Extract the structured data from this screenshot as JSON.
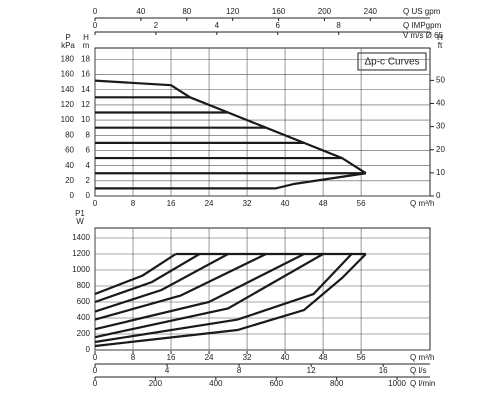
{
  "chart_data": [
    {
      "type": "line",
      "title": "Δp-c Curves",
      "grid": true,
      "color": "#1a1a1a",
      "x_label": "Q m³/h",
      "xlim": [
        0,
        70.5
      ],
      "xticks": [
        0,
        8,
        16,
        24,
        32,
        40,
        48,
        56
      ],
      "y_label": {
        "name": "H",
        "unit": "m"
      },
      "ylim": [
        0,
        19.5
      ],
      "yticks": [
        0,
        2,
        4,
        6,
        8,
        10,
        12,
        14,
        16,
        18
      ],
      "p_axis": {
        "name": "P",
        "unit": "kPa",
        "lim": [
          0,
          195
        ],
        "ticks": [
          0,
          20,
          40,
          60,
          80,
          100,
          120,
          140,
          160,
          180
        ]
      },
      "y2_label": {
        "name": "H",
        "unit": "ft"
      },
      "y2lim": [
        0,
        64
      ],
      "y2ticks": [
        0,
        10,
        20,
        30,
        40,
        50
      ],
      "top_axes": [
        {
          "label": "Q US gpm",
          "lim": [
            0,
            292
          ],
          "ticks": [
            0,
            40,
            80,
            120,
            160,
            200,
            240
          ]
        },
        {
          "label": "Q IMPgpm",
          "lim": [
            0,
            11
          ],
          "ticks": [
            0,
            2,
            4,
            6,
            8
          ]
        }
      ],
      "v_label": "V m/s Ø 65",
      "series": [
        {
          "x": [
            0,
            16,
            20,
            28,
            36,
            44,
            52,
            57
          ],
          "values": [
            15.2,
            14.6,
            13,
            11,
            9,
            7,
            5,
            3
          ]
        },
        {
          "x": [
            0,
            20
          ],
          "values": [
            13,
            13
          ]
        },
        {
          "x": [
            0,
            28
          ],
          "values": [
            11,
            11
          ]
        },
        {
          "x": [
            0,
            36
          ],
          "values": [
            9,
            9
          ]
        },
        {
          "x": [
            0,
            44
          ],
          "values": [
            7,
            7
          ]
        },
        {
          "x": [
            0,
            52
          ],
          "values": [
            5,
            5
          ]
        },
        {
          "x": [
            0,
            57
          ],
          "values": [
            3,
            3
          ]
        },
        {
          "x": [
            0,
            38,
            42,
            57
          ],
          "values": [
            1,
            1,
            1.6,
            3
          ]
        }
      ]
    },
    {
      "type": "line",
      "grid": true,
      "color": "#1a1a1a",
      "y_label": {
        "name": "P1",
        "unit": "W"
      },
      "ylim": [
        0,
        1525
      ],
      "yticks": [
        0,
        200,
        400,
        600,
        800,
        1000,
        1200,
        1400
      ],
      "xlim": [
        0,
        70.5
      ],
      "xticks": [
        0,
        8,
        16,
        24,
        32,
        40,
        48,
        56
      ],
      "bottom_axes": [
        {
          "label": "Q m³/h",
          "lim": [
            0,
            70.5
          ],
          "ticks": [
            0,
            8,
            16,
            24,
            32,
            40,
            48,
            56
          ]
        },
        {
          "label": "Q l/s",
          "lim": [
            0,
            18.6
          ],
          "ticks": [
            0,
            4,
            8,
            12,
            16
          ]
        },
        {
          "label": "Q l/min",
          "lim": [
            0,
            1109
          ],
          "ticks": [
            0,
            200,
            400,
            600,
            800,
            1000
          ]
        }
      ],
      "series": [
        {
          "x": [
            17,
            57
          ],
          "values": [
            1200,
            1200
          ]
        },
        {
          "x": [
            0,
            10,
            17
          ],
          "values": [
            700,
            930,
            1200
          ]
        },
        {
          "x": [
            0,
            12,
            22
          ],
          "values": [
            600,
            850,
            1200
          ]
        },
        {
          "x": [
            0,
            14,
            28
          ],
          "values": [
            480,
            750,
            1200
          ]
        },
        {
          "x": [
            0,
            18,
            36
          ],
          "values": [
            380,
            680,
            1200
          ]
        },
        {
          "x": [
            0,
            24,
            44
          ],
          "values": [
            260,
            600,
            1200
          ]
        },
        {
          "x": [
            0,
            28,
            48
          ],
          "values": [
            160,
            520,
            1200
          ]
        },
        {
          "x": [
            0,
            30,
            46,
            54
          ],
          "values": [
            100,
            380,
            700,
            1200
          ]
        },
        {
          "x": [
            0,
            30,
            44,
            52,
            57
          ],
          "values": [
            50,
            250,
            500,
            900,
            1200
          ]
        }
      ]
    }
  ]
}
